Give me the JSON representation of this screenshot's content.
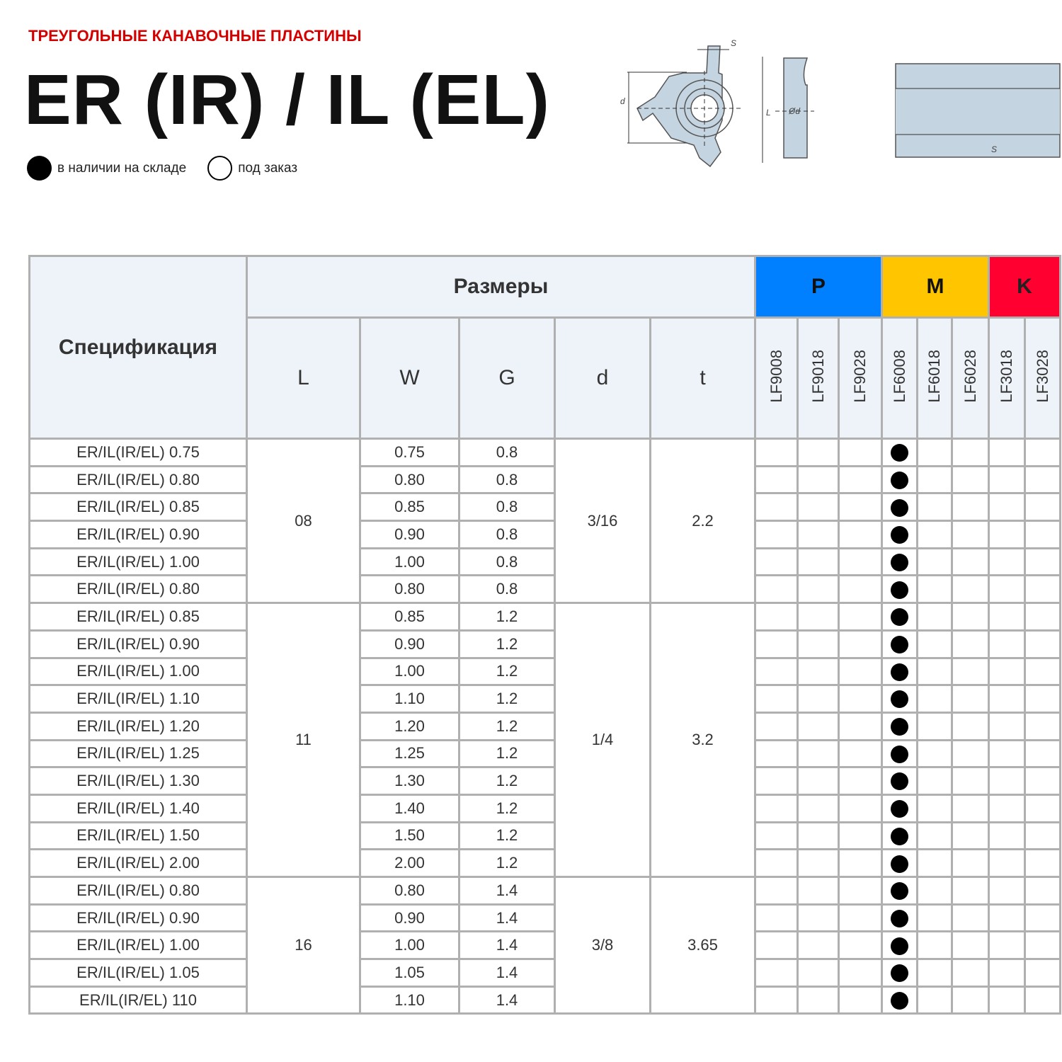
{
  "header": {
    "subtitle": "ТРЕУГОЛЬНЫЕ КАНАВОЧНЫЕ ПЛАСТИНЫ",
    "title": "ER (IR) / IL (EL)"
  },
  "legend": {
    "in_stock": "в наличии на складе",
    "on_order": "под заказ"
  },
  "drawing": {
    "labels": [
      "S",
      "d",
      "L",
      "Ød",
      "S"
    ],
    "fill_color": "#c4d4e0"
  },
  "table": {
    "spec_header": "Спецификация",
    "sizes_header": "Размеры",
    "dim_headers": [
      "L",
      "W",
      "G",
      "d",
      "t"
    ],
    "groups": [
      {
        "label": "P",
        "color": "#0080ff"
      },
      {
        "label": "M",
        "color": "#ffc600"
      },
      {
        "label": "K",
        "color": "#ff0030"
      }
    ],
    "grades": [
      "LF9008",
      "LF9018",
      "LF9028",
      "LF6008",
      "LF6018",
      "LF6028",
      "LF3018",
      "LF3028"
    ],
    "stock_grade": "LF6008",
    "blocks": [
      {
        "L": "08",
        "d": "3/16",
        "t": "2.2",
        "rows": [
          {
            "spec": "ER/IL(IR/EL) 0.75",
            "W": "0.75",
            "G": "0.8"
          },
          {
            "spec": "ER/IL(IR/EL) 0.80",
            "W": "0.80",
            "G": "0.8"
          },
          {
            "spec": "ER/IL(IR/EL) 0.85",
            "W": "0.85",
            "G": "0.8"
          },
          {
            "spec": "ER/IL(IR/EL) 0.90",
            "W": "0.90",
            "G": "0.8"
          },
          {
            "spec": "ER/IL(IR/EL) 1.00",
            "W": "1.00",
            "G": "0.8"
          },
          {
            "spec": "ER/IL(IR/EL) 0.80",
            "W": "0.80",
            "G": "0.8"
          }
        ]
      },
      {
        "L": "11",
        "d": "1/4",
        "t": "3.2",
        "rows": [
          {
            "spec": "ER/IL(IR/EL) 0.85",
            "W": "0.85",
            "G": "1.2"
          },
          {
            "spec": "ER/IL(IR/EL) 0.90",
            "W": "0.90",
            "G": "1.2"
          },
          {
            "spec": "ER/IL(IR/EL) 1.00",
            "W": "1.00",
            "G": "1.2"
          },
          {
            "spec": "ER/IL(IR/EL) 1.10",
            "W": "1.10",
            "G": "1.2"
          },
          {
            "spec": "ER/IL(IR/EL) 1.20",
            "W": "1.20",
            "G": "1.2"
          },
          {
            "spec": "ER/IL(IR/EL) 1.25",
            "W": "1.25",
            "G": "1.2"
          },
          {
            "spec": "ER/IL(IR/EL) 1.30",
            "W": "1.30",
            "G": "1.2"
          },
          {
            "spec": "ER/IL(IR/EL) 1.40",
            "W": "1.40",
            "G": "1.2"
          },
          {
            "spec": "ER/IL(IR/EL) 1.50",
            "W": "1.50",
            "G": "1.2"
          },
          {
            "spec": "ER/IL(IR/EL) 2.00",
            "W": "2.00",
            "G": "1.2"
          }
        ]
      },
      {
        "L": "16",
        "d": "3/8",
        "t": "3.65",
        "rows": [
          {
            "spec": "ER/IL(IR/EL) 0.80",
            "W": "0.80",
            "G": "1.4"
          },
          {
            "spec": "ER/IL(IR/EL) 0.90",
            "W": "0.90",
            "G": "1.4"
          },
          {
            "spec": "ER/IL(IR/EL) 1.00",
            "W": "1.00",
            "G": "1.4"
          },
          {
            "spec": "ER/IL(IR/EL) 1.05",
            "W": "1.05",
            "G": "1.4"
          },
          {
            "spec": "ER/IL(IR/EL) 110",
            "W": "1.10",
            "G": "1.4"
          }
        ]
      }
    ]
  }
}
